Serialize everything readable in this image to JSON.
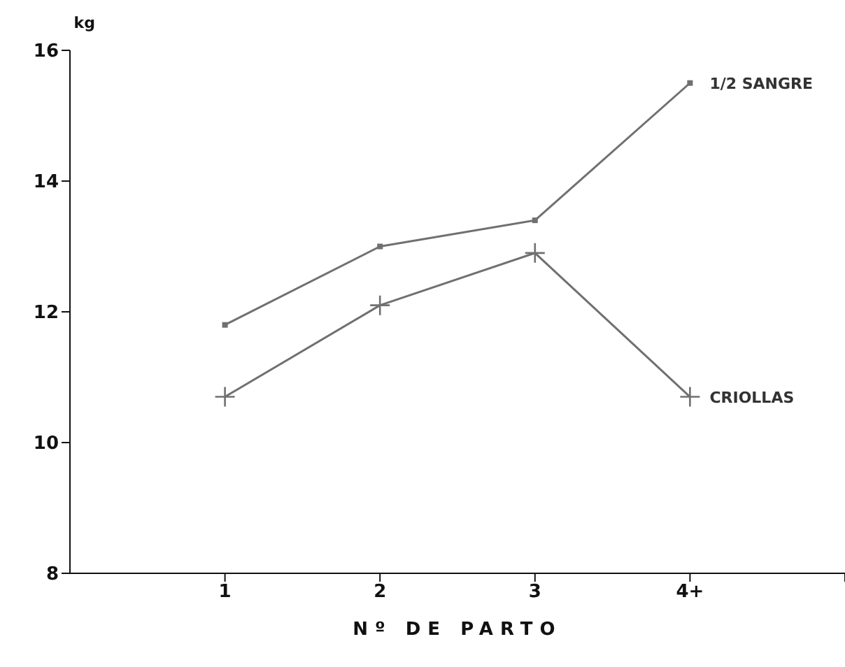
{
  "chart_data": {
    "type": "line",
    "xlabel": "Nº DE PARTO",
    "ylabel": "kg",
    "x": [
      1,
      2,
      3,
      4
    ],
    "xlim": [
      0,
      5
    ],
    "xticks": [
      1,
      2,
      3,
      {
        "value": 4,
        "label": "4+"
      },
      {
        "value": 5,
        "label": null
      }
    ],
    "ylim": [
      8,
      16
    ],
    "yticks": [
      8,
      10,
      12,
      14,
      16
    ],
    "grid": false,
    "legend": false,
    "series": [
      {
        "name": "1/2 SANGRE",
        "color": "#707070",
        "marker": "square",
        "values": [
          11.8,
          13.0,
          13.4,
          15.5
        ]
      },
      {
        "name": "CRIOLLAS",
        "color": "#707070",
        "marker": "cross",
        "values": [
          10.7,
          12.1,
          12.9,
          10.7
        ]
      }
    ]
  }
}
